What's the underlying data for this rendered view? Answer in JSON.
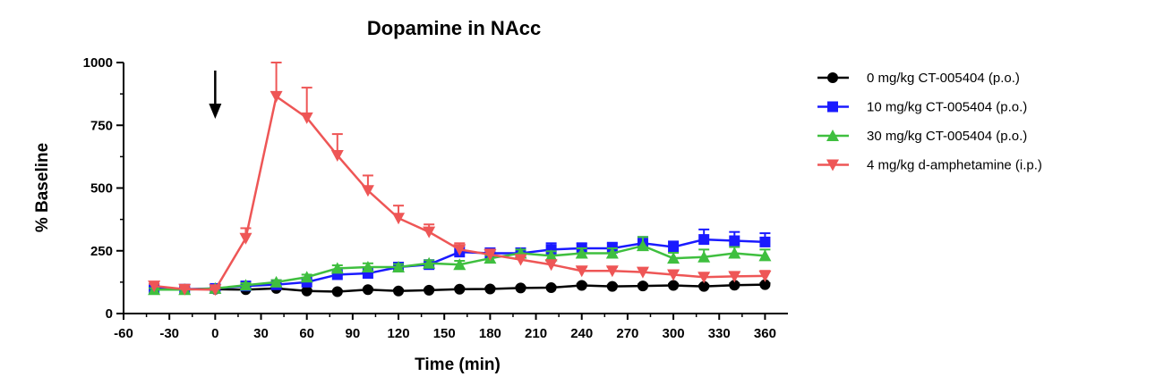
{
  "chart_data": {
    "type": "line",
    "title": "Dopamine in NAcc",
    "xlabel": "Time (min)",
    "ylabel": "% Baseline",
    "xlim": [
      -60,
      375
    ],
    "ylim": [
      0,
      1000
    ],
    "xticks": [
      -60,
      -30,
      0,
      30,
      60,
      90,
      120,
      150,
      180,
      210,
      240,
      270,
      300,
      330,
      360
    ],
    "yticks": [
      0,
      250,
      500,
      750,
      1000
    ],
    "grid": false,
    "legend_position": "right",
    "annotations": [
      {
        "type": "arrow",
        "x": 0,
        "direction": "down"
      }
    ],
    "series": [
      {
        "name": "0 mg/kg CT-005404 (p.o.)",
        "color": "#000000",
        "marker": "circle",
        "x": [
          -40,
          -20,
          0,
          20,
          40,
          60,
          80,
          100,
          120,
          140,
          160,
          180,
          200,
          220,
          240,
          260,
          280,
          300,
          320,
          340,
          360
        ],
        "y": [
          100,
          97,
          97,
          95,
          100,
          90,
          87,
          95,
          90,
          93,
          97,
          98,
          102,
          103,
          112,
          108,
          110,
          112,
          108,
          113,
          115
        ],
        "error": [
          6,
          5,
          4,
          5,
          5,
          5,
          5,
          5,
          5,
          5,
          5,
          5,
          5,
          5,
          6,
          5,
          6,
          6,
          6,
          7,
          6
        ]
      },
      {
        "name": "10 mg/kg CT-005404 (p.o.)",
        "color": "#1a1aff",
        "marker": "square",
        "x": [
          -40,
          -20,
          0,
          20,
          40,
          60,
          80,
          100,
          120,
          140,
          160,
          180,
          200,
          220,
          240,
          260,
          280,
          300,
          320,
          340,
          360
        ],
        "y": [
          100,
          97,
          100,
          110,
          115,
          125,
          155,
          160,
          185,
          195,
          245,
          240,
          240,
          255,
          260,
          260,
          280,
          265,
          295,
          290,
          285
        ],
        "error": [
          8,
          6,
          6,
          6,
          8,
          8,
          10,
          12,
          12,
          12,
          25,
          20,
          20,
          25,
          20,
          22,
          25,
          22,
          40,
          35,
          35
        ]
      },
      {
        "name": "30 mg/kg CT-005404 (p.o.)",
        "color": "#3fbf3f",
        "marker": "triangle-up",
        "x": [
          -40,
          -20,
          0,
          20,
          40,
          60,
          80,
          100,
          120,
          140,
          160,
          180,
          200,
          220,
          240,
          260,
          280,
          300,
          320,
          340,
          360
        ],
        "y": [
          95,
          95,
          100,
          113,
          125,
          145,
          180,
          185,
          185,
          200,
          195,
          220,
          240,
          230,
          240,
          240,
          270,
          220,
          225,
          240,
          230
        ],
        "error": [
          6,
          5,
          5,
          8,
          8,
          10,
          12,
          15,
          12,
          12,
          15,
          12,
          15,
          18,
          20,
          20,
          35,
          22,
          30,
          25,
          25
        ]
      },
      {
        "name": "4 mg/kg d-amphetamine (i.p.)",
        "color": "#ee5656",
        "marker": "triangle-down",
        "x": [
          -40,
          -20,
          0,
          20,
          40,
          60,
          80,
          100,
          120,
          140,
          160,
          180,
          200,
          220,
          240,
          260,
          280,
          300,
          320,
          340,
          360
        ],
        "y": [
          110,
          97,
          95,
          300,
          865,
          780,
          630,
          490,
          380,
          325,
          255,
          235,
          215,
          195,
          170,
          170,
          165,
          155,
          145,
          148,
          150
        ],
        "error": [
          8,
          5,
          5,
          40,
          135,
          120,
          85,
          60,
          50,
          30,
          25,
          20,
          18,
          15,
          15,
          15,
          15,
          15,
          15,
          15,
          20
        ]
      }
    ]
  }
}
